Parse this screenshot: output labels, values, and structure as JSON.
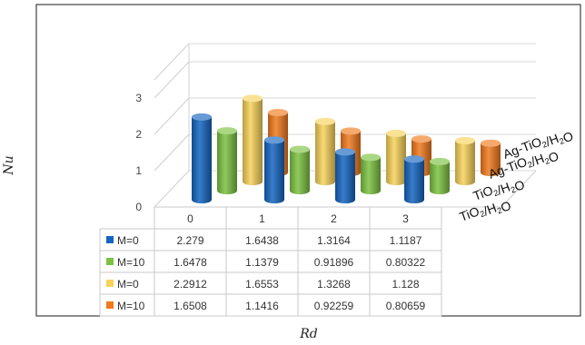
{
  "chart_data": {
    "type": "bar",
    "style": "3d-cylinder",
    "xlabel": "Rd",
    "ylabel": "Nu",
    "categories": [
      "0",
      "1",
      "2",
      "3"
    ],
    "yticks": [
      "0",
      "1",
      "2",
      "3"
    ],
    "ylim": [
      0,
      3.5
    ],
    "grid": true,
    "series": [
      {
        "name": "M=0",
        "color": "#1565c0",
        "values": [
          2.279,
          1.6438,
          1.3164,
          1.1187
        ],
        "table": [
          "2.279",
          "1.6438",
          "1.3164",
          "1.1187"
        ]
      },
      {
        "name": "M=10",
        "color": "#7cc242",
        "values": [
          1.6478,
          1.1379,
          0.91896,
          0.80322
        ],
        "table": [
          "1.6478",
          "1.1379",
          "0.91896",
          "0.80322"
        ]
      },
      {
        "name": "M=0",
        "color": "#f7d25a",
        "values": [
          2.2912,
          1.6553,
          1.3268,
          1.128
        ],
        "table": [
          "2.2912",
          "1.6553",
          "1.3268",
          "1.128"
        ]
      },
      {
        "name": "M=10",
        "color": "#f07a1e",
        "values": [
          1.6508,
          1.1416,
          0.92259,
          0.80659
        ],
        "table": [
          "1.6508",
          "1.1416",
          "0.92259",
          "0.80659"
        ]
      }
    ],
    "depth_labels": [
      {
        "base": "Ag-TiO",
        "sub1": "2",
        "mid": "/H",
        "sub2": "2",
        "end": "O"
      },
      {
        "base": "Ag-TiO",
        "sub1": "2",
        "mid": "/H",
        "sub2": "2",
        "end": "O"
      },
      {
        "base": "TiO",
        "sub1": "2",
        "mid": "/H",
        "sub2": "2",
        "end": "O"
      },
      {
        "base": "TiO",
        "sub1": "2",
        "mid": "/H",
        "sub2": "2",
        "end": "O"
      }
    ]
  }
}
